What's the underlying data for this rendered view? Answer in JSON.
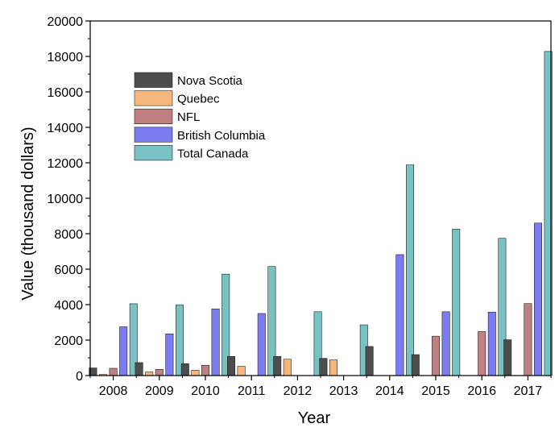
{
  "chart_data": {
    "type": "bar",
    "title": "",
    "xlabel": "Year",
    "ylabel": "Value (thousand dollars)",
    "ylim": [
      0,
      20000
    ],
    "yticks": [
      0,
      2000,
      4000,
      6000,
      8000,
      10000,
      12000,
      14000,
      16000,
      18000,
      20000
    ],
    "categories": [
      "2008",
      "2009",
      "2010",
      "2011",
      "2012",
      "2013",
      "2014",
      "2015",
      "2016",
      "2017"
    ],
    "legend_position": "top-left",
    "grid": false,
    "series": [
      {
        "name": "Nova Scotia",
        "color": "#4d4d4d",
        "values": [
          430,
          730,
          670,
          1080,
          1080,
          970,
          1640,
          1180,
          0,
          2020
        ]
      },
      {
        "name": "Quebec",
        "color": "#f7b77b",
        "values": [
          60,
          200,
          300,
          520,
          920,
          880,
          0,
          0,
          0,
          0
        ]
      },
      {
        "name": "NFL",
        "color": "#c07f80",
        "values": [
          410,
          350,
          580,
          0,
          0,
          0,
          0,
          2220,
          2480,
          4060
        ]
      },
      {
        "name": "British Columbia",
        "color": "#7b7bf2",
        "values": [
          2750,
          2350,
          3760,
          3500,
          0,
          0,
          6820,
          3600,
          3580,
          8600
        ]
      },
      {
        "name": "Total Canada",
        "color": "#79c2c4",
        "values": [
          4050,
          3980,
          5720,
          6150,
          3600,
          2860,
          11880,
          8260,
          7740,
          18280
        ]
      }
    ]
  }
}
